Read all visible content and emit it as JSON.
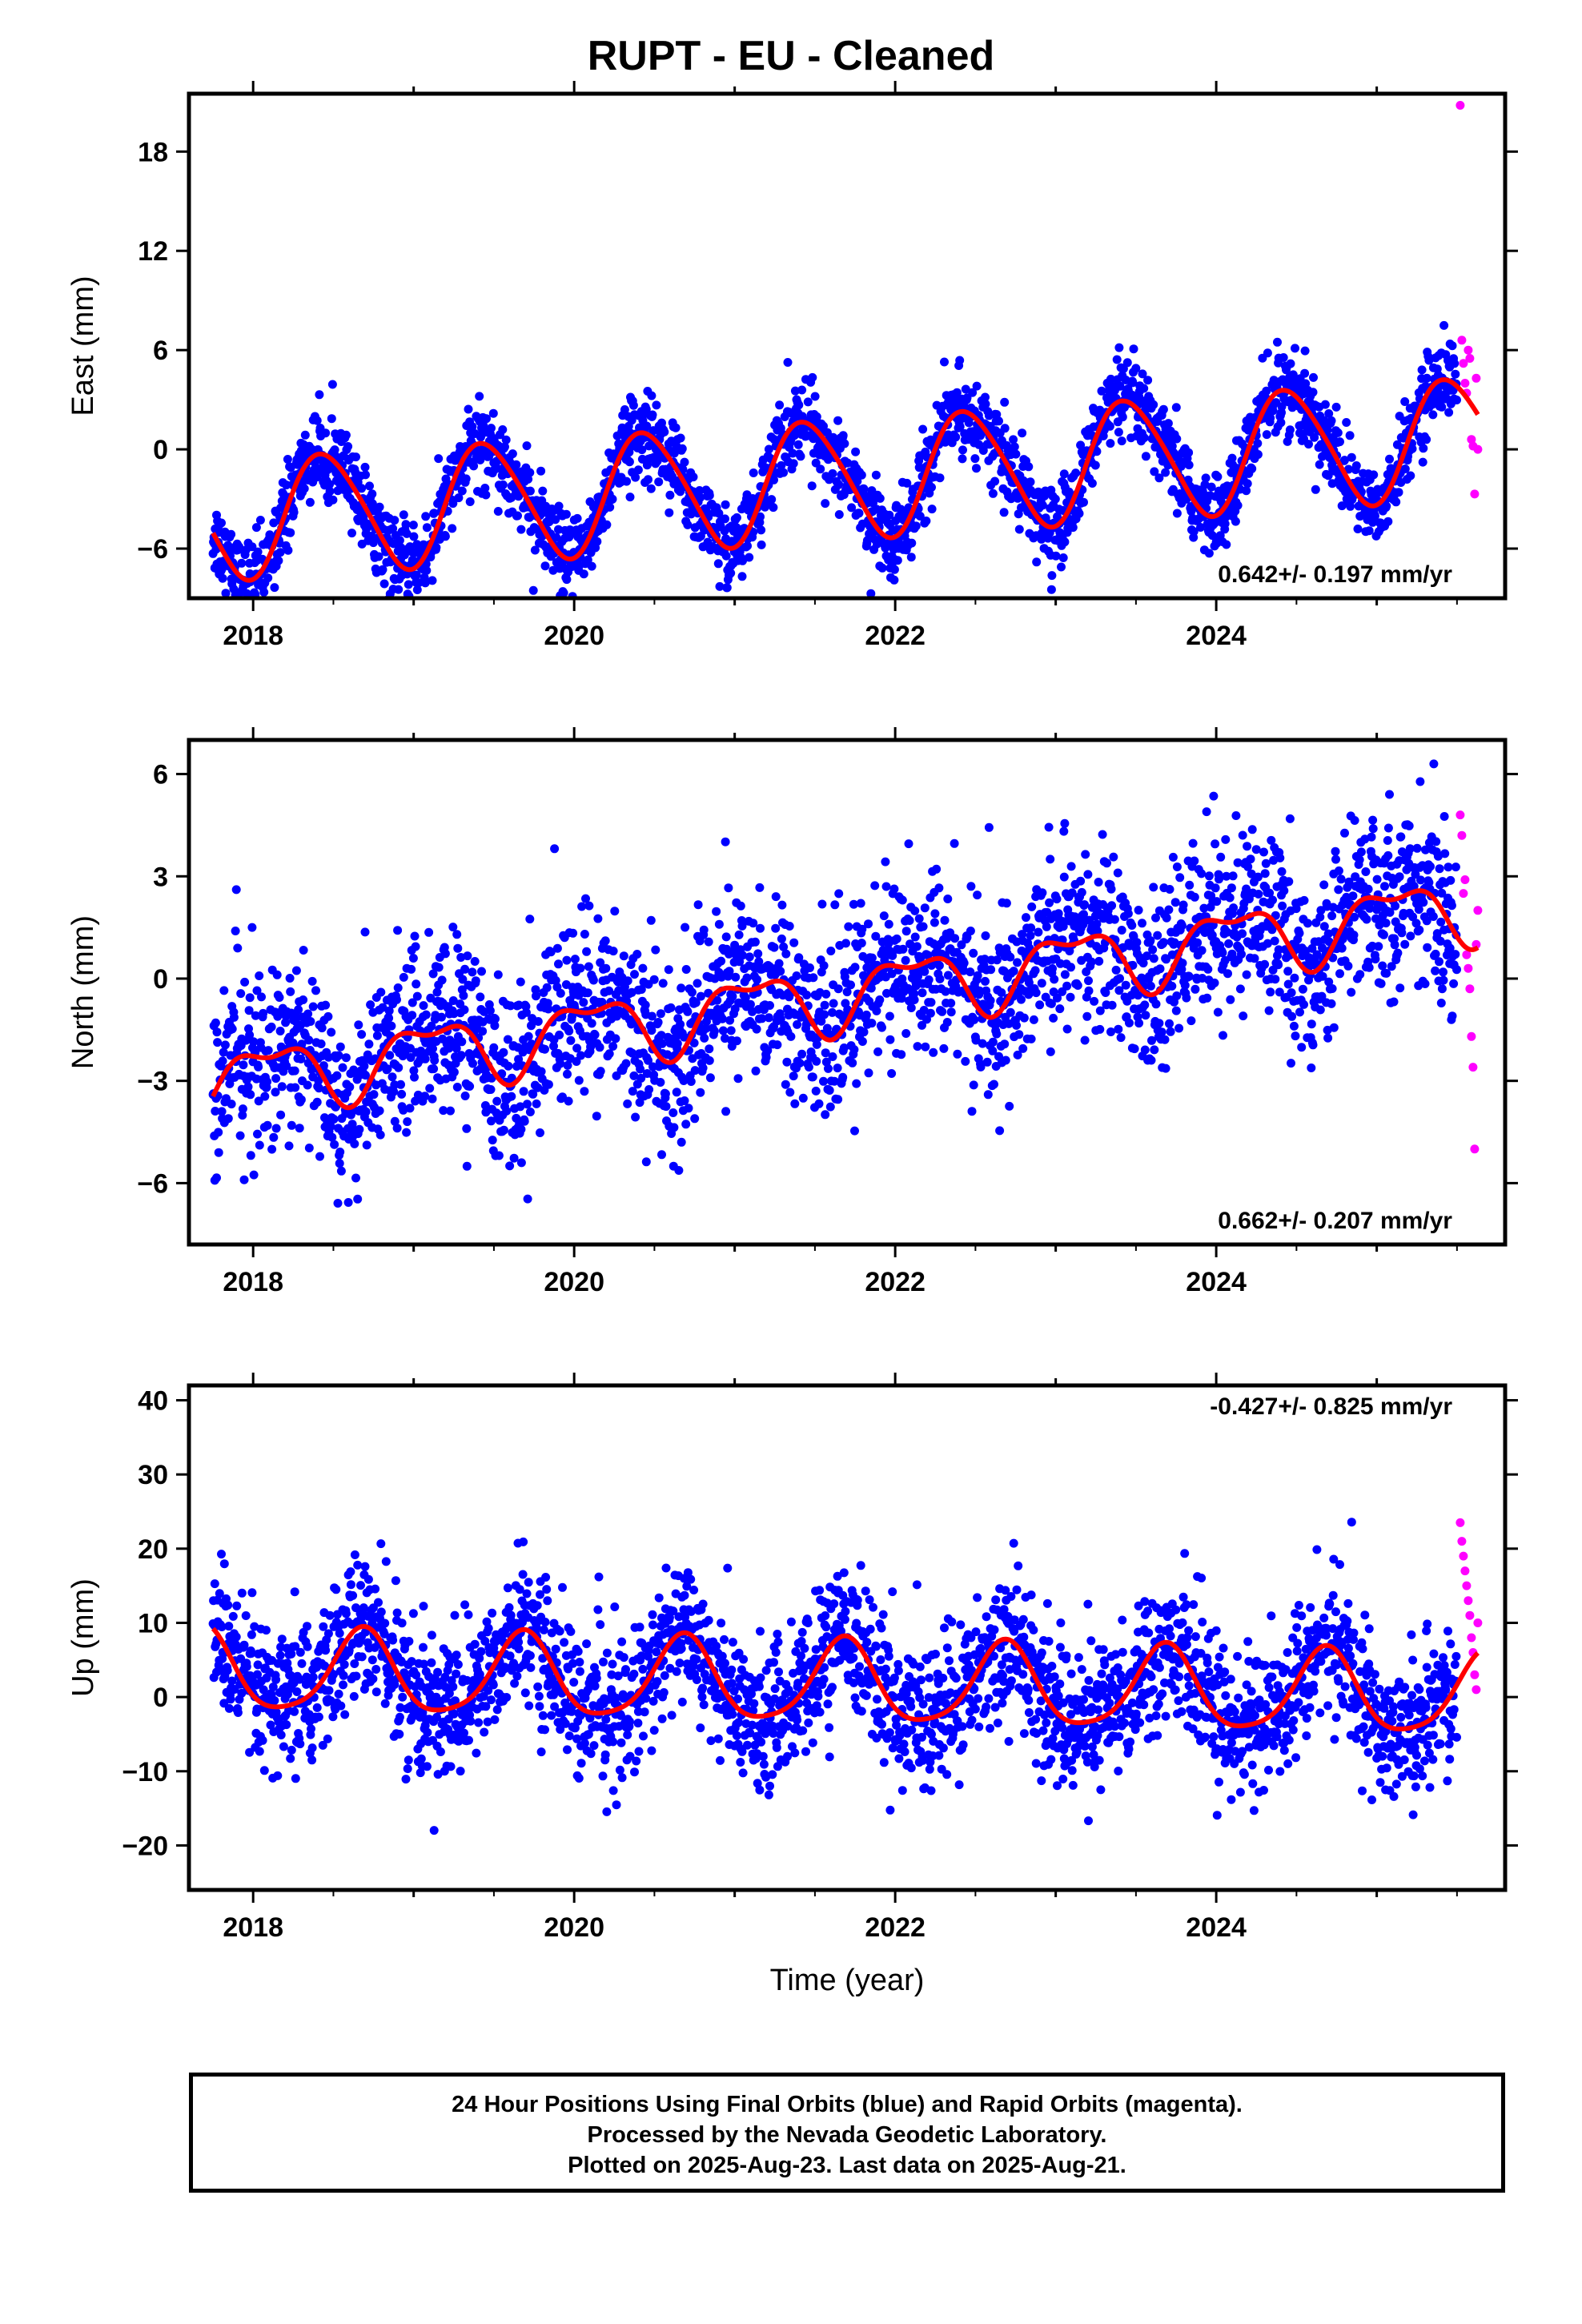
{
  "title": "RUPT  - EU - Cleaned",
  "xlabel": "Time (year)",
  "footer": {
    "line1": "24 Hour Positions Using Final Orbits (blue) and Rapid Orbits (magenta).",
    "line2": "Processed by the Nevada Geodetic Laboratory.",
    "line3": "Plotted on 2025-Aug-23. Last data on 2025-Aug-21."
  },
  "colors": {
    "final_orbits": "#0000ff",
    "rapid_orbits": "#ff00ff",
    "model_fit": "#ff0000",
    "frame": "#000000"
  },
  "chart_data": [
    {
      "type": "scatter",
      "name": "east",
      "ylabel": "East (mm)",
      "xlim": [
        2017.6,
        2025.8
      ],
      "ylim": [
        -9,
        21.5
      ],
      "xticks": [
        2018,
        2020,
        2022,
        2024
      ],
      "yticks": [
        -6,
        0,
        6,
        12,
        18
      ],
      "rate_label": "0.642+/- 0.197 mm/yr",
      "model": {
        "trend": 0.642,
        "offset": -1.8,
        "annual_amp": 3.6,
        "annual_peak": 0.45,
        "semi_amp": 0.4,
        "semi_peak": 0.3
      },
      "series": [
        {
          "name": "Final Orbits",
          "x_range": [
            2017.75,
            2025.5
          ],
          "scatter_sd": 1.2
        },
        {
          "name": "Rapid Orbits",
          "x": [
            2025.52,
            2025.53,
            2025.54,
            2025.55,
            2025.56,
            2025.57,
            2025.58,
            2025.59,
            2025.6,
            2025.61,
            2025.62,
            2025.63
          ],
          "y": [
            20.8,
            6.6,
            5.2,
            4.0,
            3.4,
            6.0,
            5.5,
            0.6,
            0.2,
            -2.7,
            4.3,
            0.0
          ]
        }
      ]
    },
    {
      "type": "scatter",
      "name": "north",
      "ylabel": "North (mm)",
      "xlim": [
        2017.6,
        2025.8
      ],
      "ylim": [
        -7.8,
        7.0
      ],
      "xticks": [
        2018,
        2020,
        2022,
        2024
      ],
      "yticks": [
        -6,
        -3,
        0,
        3,
        6
      ],
      "rate_label": "0.662+/- 0.207 mm/yr",
      "model": {
        "trend": 0.662,
        "offset": -0.5,
        "annual_amp": 0.9,
        "annual_peak": 0.1,
        "semi_amp": 0.4,
        "semi_peak": 0.35
      },
      "series": [
        {
          "name": "Final Orbits",
          "x_range": [
            2017.75,
            2025.5
          ],
          "scatter_sd": 1.3
        },
        {
          "name": "Rapid Orbits",
          "x": [
            2025.52,
            2025.53,
            2025.54,
            2025.55,
            2025.56,
            2025.57,
            2025.58,
            2025.59,
            2025.6,
            2025.61,
            2025.62,
            2025.63
          ],
          "y": [
            4.8,
            4.2,
            2.5,
            2.9,
            0.7,
            0.3,
            -0.3,
            -1.7,
            -2.6,
            -5.0,
            1.0,
            2.0
          ]
        }
      ]
    },
    {
      "type": "scatter",
      "name": "up",
      "ylabel": "Up (mm)",
      "xlim": [
        2017.6,
        2025.8
      ],
      "ylim": [
        -26,
        42
      ],
      "xticks": [
        2018,
        2020,
        2022,
        2024
      ],
      "yticks": [
        -20,
        -10,
        0,
        10,
        20,
        30,
        40
      ],
      "rate_label": "-0.427+/- 0.825 mm/yr",
      "model": {
        "trend": -0.427,
        "offset": 1.8,
        "annual_amp": 5.5,
        "annual_peak": 0.68,
        "semi_amp": 1.0,
        "semi_peak": 0.2
      },
      "series": [
        {
          "name": "Final Orbits",
          "x_range": [
            2017.75,
            2025.5
          ],
          "scatter_sd": 4.8
        },
        {
          "name": "Rapid Orbits",
          "x": [
            2025.52,
            2025.53,
            2025.54,
            2025.55,
            2025.56,
            2025.57,
            2025.58,
            2025.59,
            2025.6,
            2025.61,
            2025.62,
            2025.63
          ],
          "y": [
            23.5,
            21.0,
            19.0,
            17.0,
            15.0,
            13.0,
            11.0,
            8.0,
            6.0,
            3.0,
            1.0,
            10.0
          ]
        }
      ]
    }
  ]
}
